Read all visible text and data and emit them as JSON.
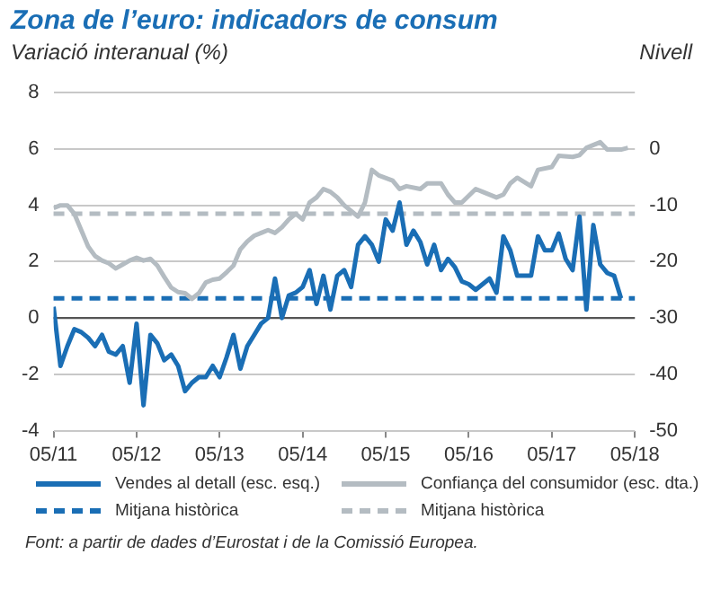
{
  "chart_data": {
    "type": "line",
    "title": "Zona de l’euro: indicadors de consum",
    "ylabel": "Variació interanual (%)",
    "y2label": "Nivell",
    "annotations": [
      "Font: a partir de dades d’Eurostat i de la Comissió Europea."
    ],
    "xlim": [
      "2011-05",
      "2018-05"
    ],
    "xticks": [
      {
        "value": "2011-05",
        "label": "05/11"
      },
      {
        "value": "2012-05",
        "label": "05/12"
      },
      {
        "value": "2013-05",
        "label": "05/13"
      },
      {
        "value": "2014-05",
        "label": "05/14"
      },
      {
        "value": "2015-05",
        "label": "05/15"
      },
      {
        "value": "2016-05",
        "label": "05/16"
      },
      {
        "value": "2017-05",
        "label": "05/17"
      },
      {
        "value": "2018-05",
        "label": "05/18"
      }
    ],
    "ylim": [
      -4,
      8
    ],
    "yticks": [
      -4,
      -2,
      0,
      2,
      4,
      6,
      8
    ],
    "y2lim": [
      -50,
      10
    ],
    "y2ticks": [
      -50,
      -40,
      -30,
      -20,
      -10,
      0
    ],
    "grid": "y",
    "legend": "bottom",
    "line_style": "solid",
    "marker": "none",
    "series": [
      {
        "name": "Vendes al detall (esc. esq.)",
        "color": "#1a6eb5",
        "x": [
          "2011-05",
          "2011-06",
          "2011-07",
          "2011-08",
          "2011-09",
          "2011-10",
          "2011-11",
          "2011-12",
          "2012-01",
          "2012-02",
          "2012-03",
          "2012-04",
          "2012-05",
          "2012-06",
          "2012-07",
          "2012-08",
          "2012-09",
          "2012-10",
          "2012-11",
          "2012-12",
          "2013-01",
          "2013-02",
          "2013-03",
          "2013-04",
          "2013-05",
          "2013-06",
          "2013-07",
          "2013-08",
          "2013-09",
          "2013-10",
          "2013-11",
          "2013-12",
          "2014-01",
          "2014-02",
          "2014-03",
          "2014-04",
          "2014-05",
          "2014-06",
          "2014-07",
          "2014-08",
          "2014-09",
          "2014-10",
          "2014-11",
          "2014-12",
          "2015-01",
          "2015-02",
          "2015-03",
          "2015-04",
          "2015-05",
          "2015-06",
          "2015-07",
          "2015-08",
          "2015-09",
          "2015-10",
          "2015-11",
          "2015-12",
          "2016-01",
          "2016-02",
          "2016-03",
          "2016-04",
          "2016-05",
          "2016-06",
          "2016-07",
          "2016-08",
          "2016-09",
          "2016-10",
          "2016-11",
          "2016-12",
          "2017-01",
          "2017-02",
          "2017-03",
          "2017-04",
          "2017-05",
          "2017-06",
          "2017-07",
          "2017-08",
          "2017-09",
          "2017-10",
          "2017-11",
          "2017-12",
          "2018-01",
          "2018-02",
          "2018-03"
        ],
        "values": [
          0.4,
          -1.7,
          -1.0,
          -0.4,
          -0.5,
          -0.7,
          -1.0,
          -0.6,
          -1.2,
          -1.3,
          -1.0,
          -2.3,
          -0.2,
          -3.1,
          -0.6,
          -0.9,
          -1.5,
          -1.3,
          -1.7,
          -2.6,
          -2.3,
          -2.1,
          -2.1,
          -1.7,
          -2.1,
          -1.4,
          -0.6,
          -1.8,
          -1.0,
          -0.6,
          -0.2,
          0.0,
          1.4,
          0.0,
          0.8,
          0.9,
          1.1,
          1.7,
          0.5,
          1.5,
          0.3,
          1.5,
          1.7,
          1.1,
          2.6,
          2.9,
          2.6,
          2.0,
          3.5,
          3.1,
          4.1,
          2.6,
          3.1,
          2.7,
          1.9,
          2.6,
          1.7,
          2.1,
          1.8,
          1.3,
          1.2,
          1.0,
          1.2,
          1.4,
          0.9,
          2.9,
          2.4,
          1.5,
          1.5,
          1.5,
          2.9,
          2.4,
          2.4,
          3.0,
          2.1,
          1.7,
          3.6,
          0.3,
          3.3,
          1.9,
          1.6,
          1.5,
          0.7
        ]
      },
      {
        "name": "Confiança del consumidor (esc. dta.)",
        "color": "#b4bcc2",
        "axis": "y2",
        "x": [
          "2011-05",
          "2011-06",
          "2011-07",
          "2011-08",
          "2011-09",
          "2011-10",
          "2011-11",
          "2011-12",
          "2012-01",
          "2012-02",
          "2012-03",
          "2012-04",
          "2012-05",
          "2012-06",
          "2012-07",
          "2012-08",
          "2012-09",
          "2012-10",
          "2012-11",
          "2012-12",
          "2013-01",
          "2013-02",
          "2013-03",
          "2013-04",
          "2013-05",
          "2013-06",
          "2013-07",
          "2013-08",
          "2013-09",
          "2013-10",
          "2013-11",
          "2013-12",
          "2014-01",
          "2014-02",
          "2014-03",
          "2014-04",
          "2014-05",
          "2014-06",
          "2014-07",
          "2014-08",
          "2014-09",
          "2014-10",
          "2014-11",
          "2015-01",
          "2015-02",
          "2015-03",
          "2015-04",
          "2015-06",
          "2015-07",
          "2015-08",
          "2015-10",
          "2015-11",
          "2016-01",
          "2016-02",
          "2016-03",
          "2016-04",
          "2016-06",
          "2016-07",
          "2016-09",
          "2016-10",
          "2016-11",
          "2016-12",
          "2017-02",
          "2017-03",
          "2017-05",
          "2017-06",
          "2017-08",
          "2017-09",
          "2017-10",
          "2017-12",
          "2018-01",
          "2018-03",
          "2018-04"
        ],
        "values": [
          -10.5,
          -10.0,
          -10.0,
          -11.5,
          -14.4,
          -17.3,
          -19.0,
          -19.8,
          -20.3,
          -21.2,
          -20.5,
          -19.8,
          -19.3,
          -19.8,
          -19.5,
          -20.7,
          -22.7,
          -24.6,
          -25.4,
          -25.6,
          -26.6,
          -25.6,
          -23.7,
          -23.2,
          -23.0,
          -21.9,
          -20.7,
          -17.8,
          -16.4,
          -15.4,
          -14.9,
          -14.4,
          -14.9,
          -13.9,
          -12.5,
          -11.5,
          -12.5,
          -9.5,
          -8.6,
          -7.1,
          -7.6,
          -8.6,
          -10.0,
          -12.0,
          -9.5,
          -3.7,
          -4.7,
          -5.6,
          -7.1,
          -6.6,
          -7.1,
          -6.1,
          -6.1,
          -8.1,
          -9.5,
          -9.5,
          -7.1,
          -7.6,
          -8.6,
          -8.1,
          -6.1,
          -5.1,
          -6.6,
          -3.7,
          -3.2,
          -1.2,
          -1.4,
          -1.1,
          0.2,
          1.2,
          -0.1,
          -0.1,
          0.2
        ]
      }
    ],
    "ref_lines": [
      {
        "axis": "y",
        "value": 0,
        "color": "#555555",
        "line_style": "solid"
      },
      {
        "axis": "y",
        "value": 0.7,
        "label": "Mitjana històrica",
        "color": "#1a6eb5",
        "line_style": "dashed"
      },
      {
        "axis": "y2",
        "value": -11.5,
        "label": "Mitjana històrica",
        "color": "#b4bcc2",
        "line_style": "dashed"
      }
    ]
  }
}
